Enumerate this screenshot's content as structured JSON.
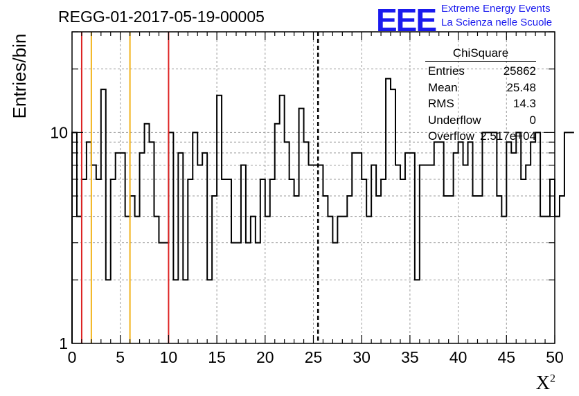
{
  "title": "REGG-01-2017-05-19-00005",
  "logo": {
    "text": "EEE",
    "line1": "Extreme Energy Events",
    "line2": "La Scienza nelle Scuole",
    "color": "#1a1aee"
  },
  "stats": {
    "title": "ChiSquare",
    "rows": [
      {
        "label": "Entries",
        "value": "25862"
      },
      {
        "label": "Mean",
        "value": "25.48"
      },
      {
        "label": "RMS",
        "value": "14.3"
      },
      {
        "label": "Underflow",
        "value": "0"
      },
      {
        "label": "Overflow",
        "value": "2.517e+04"
      }
    ]
  },
  "chart_data": {
    "type": "histogram",
    "title": "REGG-01-2017-05-19-00005",
    "xlabel": "X",
    "xlabel_sup": "2",
    "ylabel": "Entries/bin",
    "xlim": [
      0,
      50
    ],
    "ylim": [
      1,
      30
    ],
    "yscale": "log",
    "grid": true,
    "bin_width": 0.5,
    "x_ticks": [
      "0",
      "5",
      "10",
      "15",
      "20",
      "25",
      "30",
      "35",
      "40",
      "45",
      "50"
    ],
    "y_ticks": [
      "1",
      "10"
    ],
    "values": [
      10,
      4,
      6,
      9,
      7,
      6,
      16,
      2,
      6,
      8,
      8,
      4,
      5,
      4,
      8,
      11,
      9,
      4,
      3,
      3,
      10,
      2,
      8,
      2,
      6,
      10,
      7,
      8,
      2,
      5,
      15,
      6,
      6,
      3,
      3,
      7,
      3,
      4,
      3,
      6,
      4,
      6,
      11,
      15,
      9,
      6,
      5,
      13,
      9,
      7,
      7,
      7,
      5,
      4,
      3,
      4,
      4,
      5,
      8,
      8,
      6,
      4,
      7,
      5,
      6,
      18,
      16,
      7,
      6,
      8,
      8,
      2,
      7,
      7,
      7,
      9,
      9,
      5,
      5,
      8,
      9,
      7,
      9,
      5,
      5,
      10,
      10,
      10,
      5,
      4,
      9,
      8,
      10,
      6,
      7,
      9,
      10,
      4,
      4,
      6,
      4,
      5,
      10,
      10
    ],
    "vlines": [
      {
        "x": 1,
        "color": "#dd2222",
        "style": "solid"
      },
      {
        "x": 2,
        "color": "#f2b31a",
        "style": "solid"
      },
      {
        "x": 6,
        "color": "#f2b31a",
        "style": "solid"
      },
      {
        "x": 10,
        "color": "#dd2222",
        "style": "solid"
      },
      {
        "x": 25.48,
        "color": "#000000",
        "style": "dashed"
      }
    ]
  }
}
